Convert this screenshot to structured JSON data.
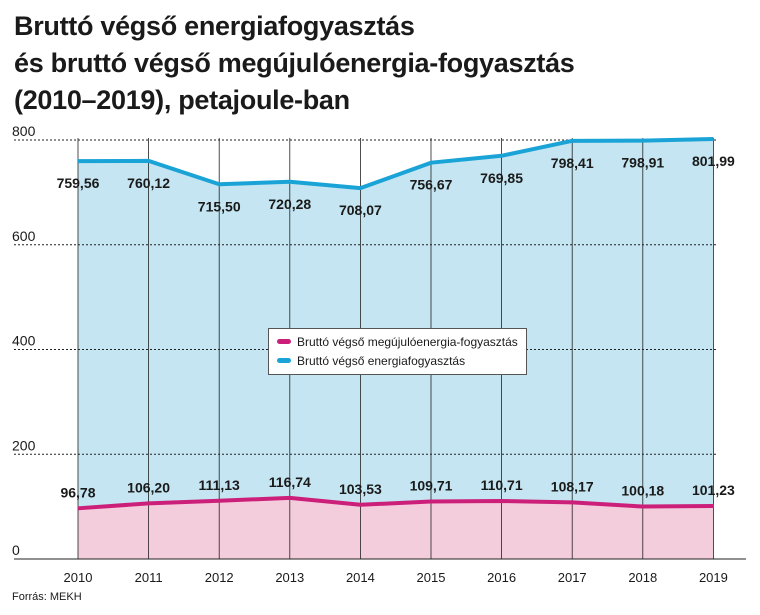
{
  "title_lines": [
    "Bruttó végső energiafogyasztás",
    "és bruttó végső megújulóenergia-fogyasztás",
    "(2010–2019), petajoule-ban"
  ],
  "source": "Forrás: MEKH",
  "colors": {
    "total": "#1aa3d6",
    "total_fill": "#c4e5f1",
    "renewable": "#cc1f7a",
    "renewable_fill": "#f4cddc"
  },
  "chart_data": {
    "type": "area",
    "title": "Bruttó végső energiafogyasztás és bruttó végső megújulóenergia-fogyasztás (2010–2019), petajoule-ban",
    "categories": [
      "2010",
      "2011",
      "2012",
      "2013",
      "2014",
      "2015",
      "2016",
      "2017",
      "2018",
      "2019"
    ],
    "ylim": [
      0,
      800
    ],
    "yticks": [
      "0",
      "200",
      "400",
      "600",
      "800"
    ],
    "ytick_values": [
      0,
      200,
      400,
      600,
      800
    ],
    "grid": true,
    "legend_position": "center",
    "series": [
      {
        "name": "Bruttó végső megújulóenergia-fogyasztás",
        "key": "renewable",
        "values": [
          96.78,
          106.2,
          111.13,
          116.74,
          103.53,
          109.71,
          110.71,
          108.17,
          100.18,
          101.23
        ],
        "labels": [
          "96,78",
          "106,20",
          "111,13",
          "116,74",
          "103,53",
          "109,71",
          "110,71",
          "108,17",
          "100,18",
          "101,23"
        ]
      },
      {
        "name": "Bruttó végső energiafogyasztás",
        "key": "total",
        "values": [
          759.56,
          760.12,
          715.5,
          720.28,
          708.07,
          756.67,
          769.85,
          798.41,
          798.91,
          801.99
        ],
        "labels": [
          "759,56",
          "760,12",
          "715,50",
          "720,28",
          "708,07",
          "756,67",
          "769,85",
          "798,41",
          "798,91",
          "801,99"
        ]
      }
    ]
  }
}
